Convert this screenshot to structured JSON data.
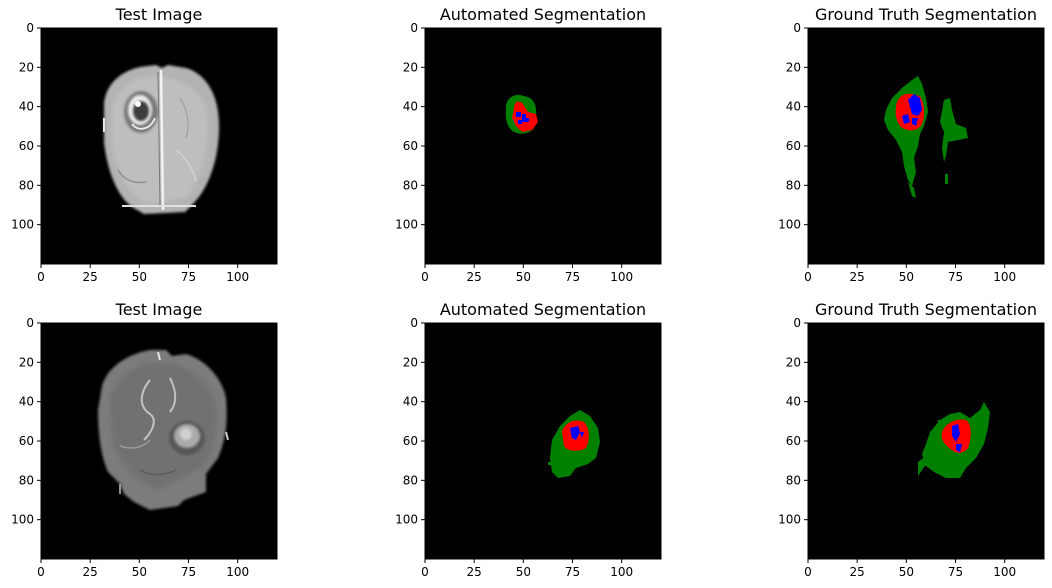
{
  "chart_data": [
    {
      "type": "image",
      "title": "Test Image",
      "xlim": [
        0,
        120
      ],
      "ylim": [
        120,
        0
      ],
      "xticks": [
        0,
        25,
        50,
        75,
        100
      ],
      "yticks": [
        0,
        20,
        40,
        60,
        80,
        100
      ],
      "content": "grayscale MRI brain slice, tumor upper-left region"
    },
    {
      "type": "image",
      "title": "Automated Segmentation",
      "xlim": [
        0,
        120
      ],
      "ylim": [
        120,
        0
      ],
      "xticks": [
        0,
        25,
        50,
        75,
        100
      ],
      "yticks": [
        0,
        20,
        40,
        60,
        80,
        100
      ],
      "content": "segmentation mask: green, red and blue regions around (48, 46)"
    },
    {
      "type": "image",
      "title": "Ground Truth Segmentation",
      "xlim": [
        0,
        120
      ],
      "ylim": [
        120,
        0
      ],
      "xticks": [
        0,
        25,
        50,
        75,
        100
      ],
      "yticks": [
        0,
        20,
        40,
        60,
        80,
        100
      ],
      "content": "segmentation mask: green edema with red/blue core around (52, 43)"
    },
    {
      "type": "image",
      "title": "Test Image",
      "xlim": [
        0,
        120
      ],
      "ylim": [
        120,
        0
      ],
      "xticks": [
        0,
        25,
        50,
        75,
        100
      ],
      "yticks": [
        0,
        20,
        40,
        60,
        80,
        100
      ],
      "content": "grayscale MRI brain slice, tumor right region"
    },
    {
      "type": "image",
      "title": "Automated Segmentation",
      "xlim": [
        0,
        120
      ],
      "ylim": [
        120,
        0
      ],
      "xticks": [
        0,
        25,
        50,
        75,
        100
      ],
      "yticks": [
        0,
        20,
        40,
        60,
        80,
        100
      ],
      "content": "segmentation mask: green, red and blue regions around (75, 57)"
    },
    {
      "type": "image",
      "title": "Ground Truth Segmentation",
      "xlim": [
        0,
        120
      ],
      "ylim": [
        120,
        0
      ],
      "xticks": [
        0,
        25,
        50,
        75,
        100
      ],
      "yticks": [
        0,
        20,
        40,
        60,
        80,
        100
      ],
      "content": "segmentation mask: green edema with red/blue core around (76, 56)"
    }
  ],
  "colors": {
    "background": "#000000",
    "edema": "#008000",
    "enhancing": "#ff0000",
    "core": "#0000ff"
  }
}
